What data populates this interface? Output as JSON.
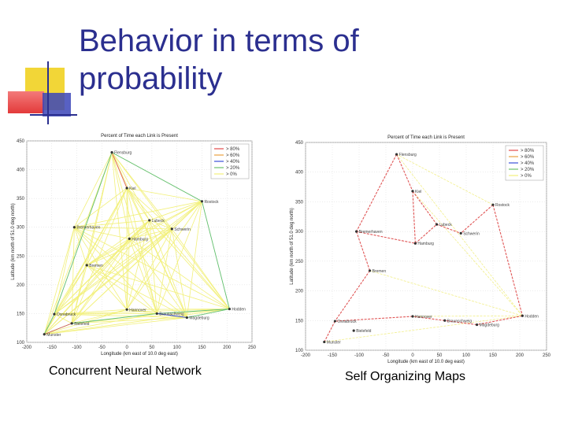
{
  "slide": {
    "title_lines": [
      "Behavior in terms of",
      "probability"
    ],
    "accent_colors": {
      "yellow": "#f2d637",
      "red": "#ea3e3e",
      "blue": "#2b2f8f"
    }
  },
  "chart_data": [
    {
      "type": "line",
      "title": "Percent of Time each Link is Present",
      "xlabel": "Longitude (km east of 10.0 deg east)",
      "ylabel": "Latitude (km north of 51.0 deg north)",
      "xlim": [
        -200,
        250
      ],
      "ylim": [
        100,
        450
      ],
      "xticks": [
        -200,
        -150,
        -100,
        -50,
        0,
        50,
        100,
        150,
        200,
        250
      ],
      "yticks": [
        100,
        150,
        200,
        250,
        300,
        350,
        400,
        450
      ],
      "legend": {
        "placement": "top-right",
        "entries": [
          "> 80%",
          "> 60%",
          "> 40%",
          "> 20%",
          "> 0%"
        ],
        "colors": [
          "#e24b4b",
          "#e9a040",
          "#3a4fd8",
          "#6cc06c",
          "#f2f07a"
        ]
      },
      "caption": "Concurrent Neural Network",
      "nodes": [
        {
          "name": "Flensburg",
          "x": -30,
          "y": 430
        },
        {
          "name": "Kiel",
          "x": 0,
          "y": 368
        },
        {
          "name": "Rostock",
          "x": 150,
          "y": 345
        },
        {
          "name": "Lubeck",
          "x": 45,
          "y": 312
        },
        {
          "name": "Schwerin",
          "x": 90,
          "y": 297
        },
        {
          "name": "Bremerhaven",
          "x": -105,
          "y": 300
        },
        {
          "name": "Hamburg",
          "x": 5,
          "y": 280
        },
        {
          "name": "Bremen",
          "x": -80,
          "y": 234
        },
        {
          "name": "Osnabruck",
          "x": -145,
          "y": 149
        },
        {
          "name": "Hannover",
          "x": 0,
          "y": 157
        },
        {
          "name": "Braunschweig",
          "x": 60,
          "y": 150
        },
        {
          "name": "Magdeburg",
          "x": 120,
          "y": 143
        },
        {
          "name": "Hodden",
          "x": 205,
          "y": 158
        },
        {
          "name": "Bielefeld",
          "x": -110,
          "y": 133
        },
        {
          "name": "Munster",
          "x": -165,
          "y": 114
        }
      ]
    },
    {
      "type": "line",
      "title": "Percent of Time each Link is Present",
      "xlabel": "Longitude (km east of 10.0 deg east)",
      "ylabel": "Latitude (km north of 51.0 deg north)",
      "xlim": [
        -200,
        250
      ],
      "ylim": [
        100,
        450
      ],
      "xticks": [
        -200,
        -150,
        -100,
        -50,
        0,
        50,
        100,
        150,
        200,
        250
      ],
      "yticks": [
        100,
        150,
        200,
        250,
        300,
        350,
        400,
        450
      ],
      "legend": {
        "placement": "top-right",
        "entries": [
          "> 80%",
          "> 60%",
          "> 40%",
          "> 20%",
          "> 0%"
        ],
        "colors": [
          "#e24b4b",
          "#e9a040",
          "#3a4fd8",
          "#6cc06c",
          "#f2f07a"
        ]
      },
      "caption": "Self Organizing Maps",
      "nodes": [
        {
          "name": "Flensburg",
          "x": -30,
          "y": 430
        },
        {
          "name": "Kiel",
          "x": 0,
          "y": 368
        },
        {
          "name": "Rostock",
          "x": 150,
          "y": 345
        },
        {
          "name": "Lubeck",
          "x": 45,
          "y": 312
        },
        {
          "name": "Schwerin",
          "x": 90,
          "y": 297
        },
        {
          "name": "Bremerhaven",
          "x": -105,
          "y": 300
        },
        {
          "name": "Hamburg",
          "x": 5,
          "y": 280
        },
        {
          "name": "Bremen",
          "x": -80,
          "y": 234
        },
        {
          "name": "Osnabruck",
          "x": -145,
          "y": 149
        },
        {
          "name": "Hannover",
          "x": 0,
          "y": 157
        },
        {
          "name": "Braunschweig",
          "x": 60,
          "y": 150
        },
        {
          "name": "Magdeburg",
          "x": 120,
          "y": 143
        },
        {
          "name": "Hodden",
          "x": 205,
          "y": 158
        },
        {
          "name": "Bielefeld",
          "x": -110,
          "y": 133
        },
        {
          "name": "Munster",
          "x": -165,
          "y": 114
        }
      ]
    }
  ]
}
